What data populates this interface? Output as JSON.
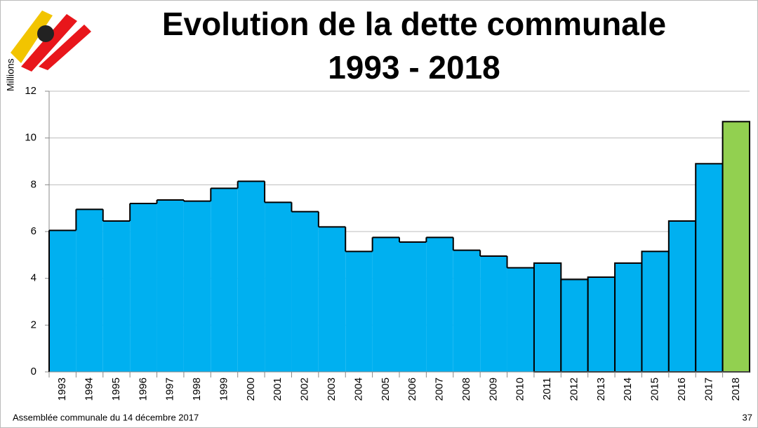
{
  "chart_data": {
    "type": "bar",
    "title": "Evolution de la dette communale",
    "subtitle": "1993 - 2018",
    "y_label": "Millions",
    "footer": "Assemblée communale du 14 décembre 2017",
    "page_number": "37",
    "categories": [
      "1993",
      "1994",
      "1995",
      "1996",
      "1997",
      "1998",
      "1999",
      "2000",
      "2001",
      "2002",
      "2003",
      "2004",
      "2005",
      "2006",
      "2007",
      "2008",
      "2009",
      "2010",
      "2011",
      "2012",
      "2013",
      "2014",
      "2015",
      "2016",
      "2017",
      "2018"
    ],
    "values": [
      6.05,
      6.95,
      6.45,
      7.2,
      7.35,
      7.3,
      7.85,
      8.15,
      7.25,
      6.85,
      6.2,
      5.15,
      5.75,
      5.55,
      5.75,
      5.2,
      4.95,
      4.45,
      4.65,
      3.95,
      4.05,
      4.65,
      5.15,
      6.45,
      8.9,
      10.7
    ],
    "colors": [
      "#00b0f0",
      "#00b0f0",
      "#00b0f0",
      "#00b0f0",
      "#00b0f0",
      "#00b0f0",
      "#00b0f0",
      "#00b0f0",
      "#00b0f0",
      "#00b0f0",
      "#00b0f0",
      "#00b0f0",
      "#00b0f0",
      "#00b0f0",
      "#00b0f0",
      "#00b0f0",
      "#00b0f0",
      "#00b0f0",
      "#00b0f0",
      "#00b0f0",
      "#00b0f0",
      "#00b0f0",
      "#00b0f0",
      "#00b0f0",
      "#00b0f0",
      "#92d050"
    ],
    "outlined": [
      false,
      false,
      false,
      false,
      false,
      false,
      false,
      false,
      false,
      false,
      false,
      false,
      false,
      false,
      false,
      false,
      false,
      false,
      true,
      true,
      true,
      true,
      true,
      true,
      true,
      true
    ],
    "ylim": [
      0,
      12
    ],
    "yticks": [
      0,
      2,
      4,
      6,
      8,
      10,
      12
    ],
    "grid": true
  }
}
